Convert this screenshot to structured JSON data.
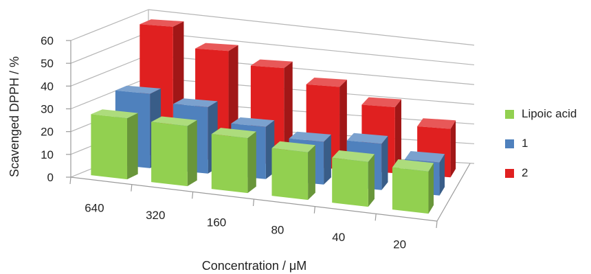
{
  "chart_data": {
    "type": "bar",
    "title": "",
    "xlabel": "Concentration / μM",
    "ylabel": "Scavenged DPPH / %",
    "ylim": [
      0,
      60
    ],
    "yticks": [
      "0",
      "10",
      "20",
      "30",
      "40",
      "50",
      "60"
    ],
    "categories": [
      "640",
      "320",
      "160",
      "80",
      "40",
      "20"
    ],
    "series": [
      {
        "name": "Lipoic acid",
        "color": "#92D050",
        "values": [
          27,
          27,
          25,
          22,
          21,
          20
        ]
      },
      {
        "name": "1",
        "color": "#4F81BD",
        "values": [
          33,
          30,
          24,
          20,
          22,
          16
        ]
      },
      {
        "name": "2",
        "color": "#E02020",
        "values": [
          58,
          50,
          45,
          39,
          32,
          24
        ]
      }
    ],
    "legend_position": "right",
    "grid": true
  }
}
